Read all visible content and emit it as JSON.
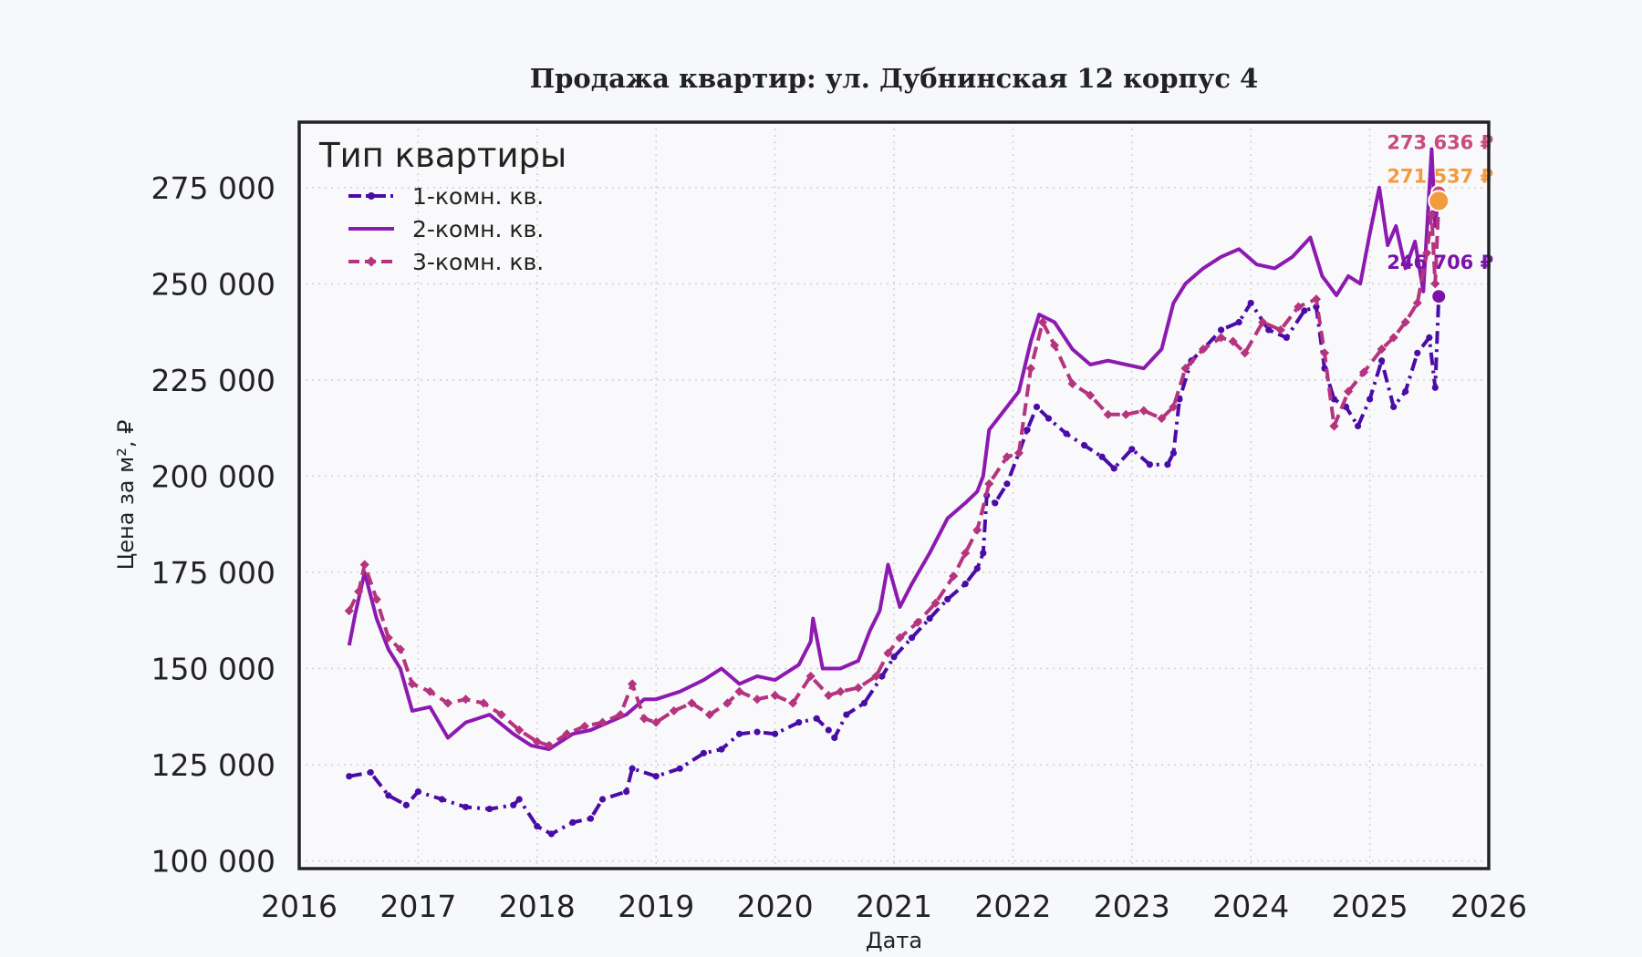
{
  "chart_data": {
    "type": "line",
    "title": "Продажа квартир: ул. Дубнинская 12 корпус 4",
    "xlabel": "Дата",
    "ylabel": "Цена за м², ₽",
    "xlim": [
      2016,
      2026
    ],
    "ylim": [
      98000,
      292000
    ],
    "x_ticks": [
      "2016",
      "2017",
      "2018",
      "2019",
      "2020",
      "2021",
      "2022",
      "2023",
      "2024",
      "2025",
      "2026"
    ],
    "y_ticks": [
      {
        "value": 100000,
        "label": "100 000"
      },
      {
        "value": 125000,
        "label": "125 000"
      },
      {
        "value": 150000,
        "label": "150 000"
      },
      {
        "value": 175000,
        "label": "175 000"
      },
      {
        "value": 200000,
        "label": "200 000"
      },
      {
        "value": 225000,
        "label": "225 000"
      },
      {
        "value": 250000,
        "label": "250 000"
      },
      {
        "value": 275000,
        "label": "275 000"
      }
    ],
    "grid": true,
    "legend": {
      "title": "Тип квартиры",
      "placement": "top-left"
    },
    "series": [
      {
        "name": "1-комн. кв.",
        "color": "#4a0ca6",
        "style": "dashdot",
        "marker": "circle",
        "points": [
          [
            2016.42,
            122000
          ],
          [
            2016.6,
            123000
          ],
          [
            2016.75,
            117000
          ],
          [
            2016.9,
            114500
          ],
          [
            2017.0,
            118000
          ],
          [
            2017.2,
            116000
          ],
          [
            2017.4,
            114000
          ],
          [
            2017.6,
            113500
          ],
          [
            2017.8,
            114500
          ],
          [
            2017.85,
            116000
          ],
          [
            2018.0,
            109000
          ],
          [
            2018.12,
            107000
          ],
          [
            2018.3,
            110000
          ],
          [
            2018.45,
            111000
          ],
          [
            2018.55,
            116000
          ],
          [
            2018.75,
            118000
          ],
          [
            2018.8,
            124000
          ],
          [
            2019.0,
            122000
          ],
          [
            2019.2,
            124000
          ],
          [
            2019.4,
            128000
          ],
          [
            2019.55,
            129000
          ],
          [
            2019.7,
            133000
          ],
          [
            2019.85,
            133500
          ],
          [
            2020.0,
            133000
          ],
          [
            2020.2,
            136000
          ],
          [
            2020.35,
            137000
          ],
          [
            2020.45,
            134000
          ],
          [
            2020.5,
            132000
          ],
          [
            2020.6,
            138000
          ],
          [
            2020.75,
            141000
          ],
          [
            2020.9,
            148000
          ],
          [
            2021.0,
            153000
          ],
          [
            2021.15,
            158000
          ],
          [
            2021.3,
            163000
          ],
          [
            2021.45,
            168000
          ],
          [
            2021.6,
            172000
          ],
          [
            2021.7,
            176000
          ],
          [
            2021.75,
            180000
          ],
          [
            2021.78,
            195000
          ],
          [
            2021.85,
            193000
          ],
          [
            2021.95,
            198000
          ],
          [
            2022.05,
            206000
          ],
          [
            2022.12,
            212000
          ],
          [
            2022.2,
            218000
          ],
          [
            2022.3,
            215000
          ],
          [
            2022.45,
            211000
          ],
          [
            2022.6,
            208000
          ],
          [
            2022.75,
            205000
          ],
          [
            2022.85,
            202000
          ],
          [
            2023.0,
            207000
          ],
          [
            2023.15,
            203000
          ],
          [
            2023.3,
            203000
          ],
          [
            2023.35,
            206000
          ],
          [
            2023.4,
            220000
          ],
          [
            2023.5,
            230000
          ],
          [
            2023.6,
            233000
          ],
          [
            2023.75,
            238000
          ],
          [
            2023.9,
            240000
          ],
          [
            2024.0,
            245000
          ],
          [
            2024.15,
            238000
          ],
          [
            2024.3,
            236000
          ],
          [
            2024.45,
            243000
          ],
          [
            2024.55,
            244000
          ],
          [
            2024.62,
            228000
          ],
          [
            2024.7,
            220000
          ],
          [
            2024.8,
            218000
          ],
          [
            2024.9,
            213000
          ],
          [
            2025.0,
            220000
          ],
          [
            2025.1,
            230000
          ],
          [
            2025.2,
            218000
          ],
          [
            2025.3,
            222000
          ],
          [
            2025.4,
            232000
          ],
          [
            2025.5,
            236000
          ],
          [
            2025.55,
            223000
          ],
          [
            2025.58,
            246706
          ]
        ]
      },
      {
        "name": "2-комн. кв.",
        "color": "#8c1ab0",
        "style": "solid",
        "marker": "none",
        "points": [
          [
            2016.42,
            156000
          ],
          [
            2016.47,
            164000
          ],
          [
            2016.55,
            175000
          ],
          [
            2016.65,
            163000
          ],
          [
            2016.75,
            155000
          ],
          [
            2016.85,
            150000
          ],
          [
            2016.95,
            139000
          ],
          [
            2017.1,
            140000
          ],
          [
            2017.25,
            132000
          ],
          [
            2017.4,
            136000
          ],
          [
            2017.6,
            138000
          ],
          [
            2017.8,
            133000
          ],
          [
            2017.95,
            130000
          ],
          [
            2018.1,
            129000
          ],
          [
            2018.3,
            133000
          ],
          [
            2018.45,
            134000
          ],
          [
            2018.6,
            136000
          ],
          [
            2018.75,
            138000
          ],
          [
            2018.9,
            142000
          ],
          [
            2019.0,
            142000
          ],
          [
            2019.2,
            144000
          ],
          [
            2019.4,
            147000
          ],
          [
            2019.55,
            150000
          ],
          [
            2019.7,
            146000
          ],
          [
            2019.85,
            148000
          ],
          [
            2020.0,
            147000
          ],
          [
            2020.2,
            151000
          ],
          [
            2020.3,
            157000
          ],
          [
            2020.32,
            163000
          ],
          [
            2020.4,
            150000
          ],
          [
            2020.55,
            150000
          ],
          [
            2020.7,
            152000
          ],
          [
            2020.8,
            160000
          ],
          [
            2020.88,
            165000
          ],
          [
            2020.95,
            177000
          ],
          [
            2021.05,
            166000
          ],
          [
            2021.15,
            172000
          ],
          [
            2021.3,
            180000
          ],
          [
            2021.45,
            189000
          ],
          [
            2021.6,
            193000
          ],
          [
            2021.7,
            196000
          ],
          [
            2021.75,
            200000
          ],
          [
            2021.8,
            212000
          ],
          [
            2021.95,
            218000
          ],
          [
            2022.05,
            222000
          ],
          [
            2022.15,
            235000
          ],
          [
            2022.22,
            242000
          ],
          [
            2022.35,
            240000
          ],
          [
            2022.5,
            233000
          ],
          [
            2022.65,
            229000
          ],
          [
            2022.8,
            230000
          ],
          [
            2022.95,
            229000
          ],
          [
            2023.1,
            228000
          ],
          [
            2023.25,
            233000
          ],
          [
            2023.35,
            245000
          ],
          [
            2023.45,
            250000
          ],
          [
            2023.6,
            254000
          ],
          [
            2023.75,
            257000
          ],
          [
            2023.9,
            259000
          ],
          [
            2024.05,
            255000
          ],
          [
            2024.2,
            254000
          ],
          [
            2024.35,
            257000
          ],
          [
            2024.5,
            262000
          ],
          [
            2024.6,
            252000
          ],
          [
            2024.72,
            247000
          ],
          [
            2024.82,
            252000
          ],
          [
            2024.92,
            250000
          ],
          [
            2025.0,
            263000
          ],
          [
            2025.08,
            275000
          ],
          [
            2025.15,
            260000
          ],
          [
            2025.22,
            265000
          ],
          [
            2025.3,
            254000
          ],
          [
            2025.38,
            261000
          ],
          [
            2025.45,
            248000
          ],
          [
            2025.52,
            285000
          ],
          [
            2025.55,
            265000
          ],
          [
            2025.58,
            273636
          ]
        ]
      },
      {
        "name": "3-комн. кв.",
        "color": "#b5347f",
        "style": "dashed",
        "marker": "diamond",
        "points": [
          [
            2016.42,
            165000
          ],
          [
            2016.5,
            170000
          ],
          [
            2016.55,
            177000
          ],
          [
            2016.65,
            168000
          ],
          [
            2016.75,
            158000
          ],
          [
            2016.85,
            155000
          ],
          [
            2016.95,
            146000
          ],
          [
            2017.1,
            144000
          ],
          [
            2017.25,
            141000
          ],
          [
            2017.4,
            142000
          ],
          [
            2017.55,
            141000
          ],
          [
            2017.7,
            138000
          ],
          [
            2017.85,
            134000
          ],
          [
            2018.0,
            131000
          ],
          [
            2018.1,
            130000
          ],
          [
            2018.25,
            133000
          ],
          [
            2018.4,
            135000
          ],
          [
            2018.55,
            136000
          ],
          [
            2018.7,
            138000
          ],
          [
            2018.8,
            146000
          ],
          [
            2018.9,
            137000
          ],
          [
            2019.0,
            136000
          ],
          [
            2019.15,
            139000
          ],
          [
            2019.3,
            141000
          ],
          [
            2019.45,
            138000
          ],
          [
            2019.6,
            141000
          ],
          [
            2019.7,
            144000
          ],
          [
            2019.85,
            142000
          ],
          [
            2020.0,
            143000
          ],
          [
            2020.15,
            141000
          ],
          [
            2020.3,
            148000
          ],
          [
            2020.45,
            143000
          ],
          [
            2020.55,
            144000
          ],
          [
            2020.7,
            145000
          ],
          [
            2020.85,
            148000
          ],
          [
            2020.95,
            154000
          ],
          [
            2021.05,
            158000
          ],
          [
            2021.2,
            162000
          ],
          [
            2021.35,
            167000
          ],
          [
            2021.5,
            174000
          ],
          [
            2021.6,
            180000
          ],
          [
            2021.7,
            186000
          ],
          [
            2021.8,
            198000
          ],
          [
            2021.95,
            205000
          ],
          [
            2022.05,
            206000
          ],
          [
            2022.15,
            228000
          ],
          [
            2022.25,
            240000
          ],
          [
            2022.35,
            234000
          ],
          [
            2022.5,
            224000
          ],
          [
            2022.65,
            221000
          ],
          [
            2022.8,
            216000
          ],
          [
            2022.95,
            216000
          ],
          [
            2023.1,
            217000
          ],
          [
            2023.25,
            215000
          ],
          [
            2023.35,
            218000
          ],
          [
            2023.45,
            228000
          ],
          [
            2023.6,
            233000
          ],
          [
            2023.75,
            236000
          ],
          [
            2023.85,
            235000
          ],
          [
            2023.95,
            232000
          ],
          [
            2024.1,
            240000
          ],
          [
            2024.25,
            238000
          ],
          [
            2024.4,
            244000
          ],
          [
            2024.55,
            246000
          ],
          [
            2024.62,
            232000
          ],
          [
            2024.7,
            213000
          ],
          [
            2024.82,
            222000
          ],
          [
            2024.95,
            227000
          ],
          [
            2025.1,
            233000
          ],
          [
            2025.2,
            236000
          ],
          [
            2025.3,
            240000
          ],
          [
            2025.4,
            245000
          ],
          [
            2025.48,
            258000
          ],
          [
            2025.52,
            268000
          ],
          [
            2025.55,
            250000
          ],
          [
            2025.58,
            271537
          ]
        ]
      }
    ],
    "end_labels": [
      {
        "text": "273 636 ₽",
        "color": "#c94b7d",
        "x": 2025.58,
        "y": 273636
      },
      {
        "text": "271 537 ₽",
        "color": "#f39b3f",
        "x": 2025.58,
        "y": 271537
      },
      {
        "text": "246 706 ₽",
        "color": "#7a14a8",
        "x": 2025.58,
        "y": 246706
      }
    ]
  }
}
